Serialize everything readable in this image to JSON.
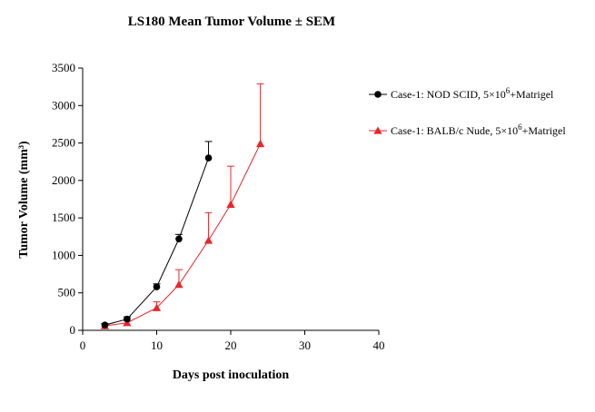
{
  "chart_data": {
    "type": "line",
    "title": "LS180 Mean Tumor Volume ± SEM",
    "xlabel": "Days post inoculation",
    "ylabel": "Tumor Volume (mm³)",
    "xlim": [
      0,
      40
    ],
    "ylim": [
      0,
      3500
    ],
    "xticks": [
      0,
      10,
      20,
      30,
      40
    ],
    "yticks": [
      0,
      500,
      1000,
      1500,
      2000,
      2500,
      3000,
      3500
    ],
    "grid": false,
    "legend_position": "right",
    "series": [
      {
        "name": "Case-1: NOD SCID, 5×10⁶+Matrigel",
        "legend_main": "Case-1: NOD SCID, 5×10",
        "legend_sup": "6",
        "legend_tail": "+Matrigel",
        "color": "#000000",
        "marker": "circle",
        "x": [
          3,
          6,
          10,
          13,
          17
        ],
        "y": [
          70,
          150,
          580,
          1220,
          2300
        ],
        "error": [
          20,
          30,
          40,
          60,
          220
        ]
      },
      {
        "name": "Case-1: BALB/c Nude, 5×10⁶+Matrigel",
        "legend_main": "Case-1: BALB/c Nude, 5×10",
        "legend_sup": "6",
        "legend_tail": "+Matrigel",
        "color": "#e8262a",
        "marker": "triangle",
        "x": [
          3,
          6,
          10,
          13,
          17,
          20,
          24
        ],
        "y": [
          60,
          100,
          300,
          610,
          1200,
          1680,
          2490
        ],
        "error": [
          15,
          25,
          80,
          200,
          370,
          510,
          800
        ]
      }
    ]
  }
}
